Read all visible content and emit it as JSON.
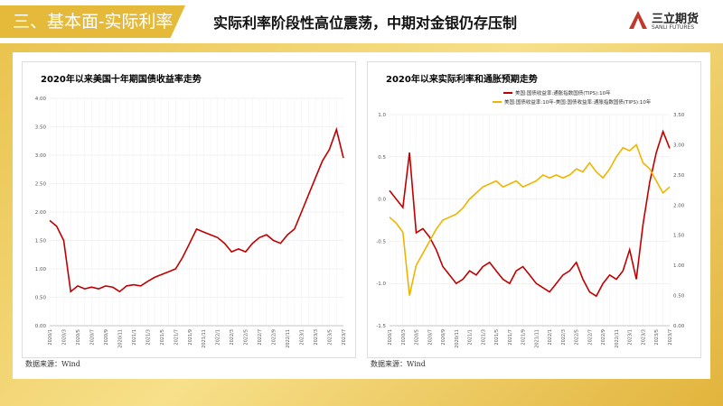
{
  "header": {
    "section": "三、基本面-实际利率",
    "title": "实际利率阶段性高位震荡，中期对金银仍存压制",
    "logo_cn": "三立期货",
    "logo_en": "SANLI FUTURES"
  },
  "chart_data": [
    {
      "type": "line",
      "title": "2020年以来美国十年期国债收益率走势",
      "source": "数据来源：Wind",
      "categories": [
        "2020/1",
        null,
        "2020/3",
        null,
        "2020/5",
        null,
        "2020/7",
        null,
        "2020/9",
        null,
        "2020/11",
        null,
        "2021/1",
        null,
        "2021/3",
        null,
        "2021/5",
        null,
        "2021/7",
        null,
        "2021/9",
        null,
        "2021/11",
        null,
        "2022/1",
        null,
        "2022/3",
        null,
        "2022/5",
        null,
        "2022/7",
        null,
        "2022/9",
        null,
        "2022/11",
        null,
        "2023/1",
        null,
        "2023/3",
        null,
        "2023/5",
        null,
        "2023/7"
      ],
      "series": [
        {
          "name": null,
          "color": "#c00000",
          "values": [
            1.85,
            1.75,
            1.5,
            0.6,
            0.7,
            0.65,
            0.68,
            0.65,
            0.7,
            0.68,
            0.6,
            0.7,
            0.72,
            0.7,
            0.78,
            0.85,
            0.9,
            0.95,
            1.0,
            1.2,
            1.45,
            1.7,
            1.65,
            1.6,
            1.55,
            1.45,
            1.3,
            1.35,
            1.3,
            1.45,
            1.55,
            1.6,
            1.5,
            1.45,
            1.6,
            1.7,
            2.0,
            2.3,
            2.6,
            2.9,
            3.1,
            3.45,
            2.95
          ]
        }
      ],
      "ylim": [
        0,
        4
      ],
      "yticks": [
        {
          "value": 0,
          "label": "0.00"
        },
        {
          "value": 0.5,
          "label": "0.50"
        },
        {
          "value": 1,
          "label": "1.00"
        },
        {
          "value": 1.5,
          "label": "1.50"
        },
        {
          "value": 2,
          "label": "2.00"
        },
        {
          "value": 2.5,
          "label": "2.50"
        },
        {
          "value": 3,
          "label": "3.00"
        },
        {
          "value": 3.5,
          "label": "3.50"
        },
        {
          "value": 4,
          "label": "4.00"
        }
      ],
      "grid": true
    },
    {
      "type": "line",
      "title": "2020年以来实际利率和通胀预期走势",
      "source": "数据来源：Wind",
      "categories": [
        "2020/1",
        null,
        "2020/3",
        null,
        "2020/5",
        null,
        "2020/7",
        null,
        "2020/9",
        null,
        "2020/11",
        null,
        "2021/1",
        null,
        "2021/3",
        null,
        "2021/5",
        null,
        "2021/7",
        null,
        "2021/9",
        null,
        "2021/11",
        null,
        "2022/1",
        null,
        "2022/3",
        null,
        "2022/5",
        null,
        "2022/7",
        null,
        "2022/9",
        null,
        "2022/11",
        null,
        "2023/1",
        null,
        "2023/3",
        null,
        "2023/5",
        null,
        "2023/7"
      ],
      "series": [
        {
          "name": "美国:国债收益率:通胀指数国债(TIPS):10年",
          "color": "#c00000",
          "values": [
            0.1,
            0.0,
            -0.1,
            0.55,
            -0.4,
            -0.35,
            -0.45,
            -0.6,
            -0.8,
            -0.9,
            -1.0,
            -0.95,
            -0.85,
            -0.9,
            -0.8,
            -0.75,
            -0.85,
            -0.95,
            -1.0,
            -0.85,
            -0.8,
            -0.9,
            -1.0,
            -1.05,
            -1.1,
            -1.0,
            -0.9,
            -0.85,
            -0.75,
            -0.95,
            -1.1,
            -1.15,
            -1.0,
            -0.9,
            -0.95,
            -0.85,
            -0.6,
            -0.95,
            -0.3,
            0.2,
            0.55,
            0.8,
            0.6
          ]
        },
        {
          "name": "美国:国债收益率:10年-美国:国债收益率:通胀指数国债(TIPS):10年",
          "color": "#f0b400",
          "axis": "y2",
          "values": [
            1.8,
            1.7,
            1.55,
            0.5,
            1.0,
            1.2,
            1.4,
            1.6,
            1.75,
            1.8,
            1.85,
            1.95,
            2.1,
            2.2,
            2.3,
            2.35,
            2.4,
            2.3,
            2.35,
            2.4,
            2.3,
            2.35,
            2.4,
            2.5,
            2.45,
            2.5,
            2.45,
            2.5,
            2.6,
            2.55,
            2.7,
            2.55,
            2.45,
            2.6,
            2.8,
            2.95,
            2.9,
            3.0,
            2.7,
            2.6,
            2.4,
            2.2,
            2.3
          ]
        }
      ],
      "ylim": [
        -1.5,
        1
      ],
      "yticks": [
        -1.5,
        {
          "value": -1,
          "label": "-1.0"
        },
        -0.5,
        {
          "value": 0,
          "label": "0.0"
        },
        0.5,
        {
          "value": 1,
          "label": "1.0"
        }
      ],
      "y2lim": [
        0,
        3.5
      ],
      "y2ticks": [
        {
          "value": 0,
          "label": "0.00"
        },
        {
          "value": 0.5,
          "label": "0.50"
        },
        {
          "value": 1,
          "label": "1.00"
        },
        {
          "value": 1.5,
          "label": "1.50"
        },
        {
          "value": 2,
          "label": "2.00"
        },
        {
          "value": 2.5,
          "label": "2.50"
        },
        {
          "value": 3,
          "label": "3.00"
        },
        {
          "value": 3.5,
          "label": "3.50"
        }
      ],
      "grid": true,
      "legend": "top"
    }
  ]
}
